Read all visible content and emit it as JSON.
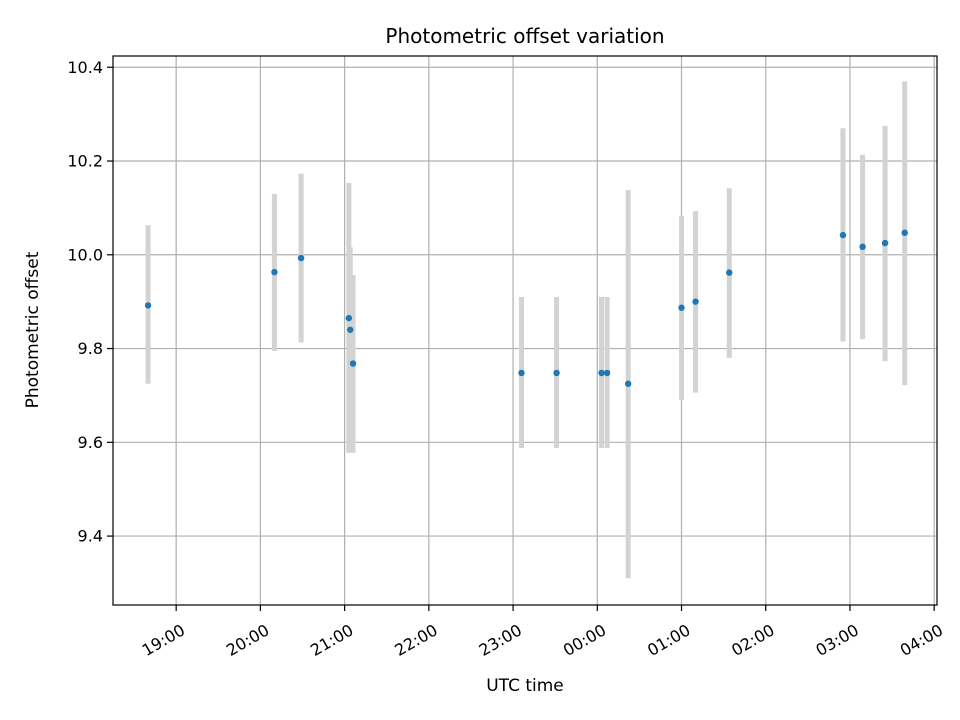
{
  "chart_data": {
    "type": "scatter",
    "title": "Photometric offset variation",
    "xlabel": "UTC time",
    "ylabel": "Photometric offset",
    "x_tick_labels": [
      "19:00",
      "20:00",
      "21:00",
      "22:00",
      "23:00",
      "00:00",
      "01:00",
      "02:00",
      "03:00",
      "04:00"
    ],
    "y_ticks": [
      9.4,
      9.6,
      9.8,
      10.0,
      10.2,
      10.4
    ],
    "y_tick_labels": [
      "9.4",
      "9.6",
      "9.8",
      "10.0",
      "10.2",
      "10.4"
    ],
    "xlim": [
      "18:15",
      "04:02"
    ],
    "ylim": [
      9.253,
      10.424
    ],
    "grid": true,
    "marker_color": "#1f77b4",
    "errorbar_color": "#d3d3d3",
    "points": [
      {
        "t": "18:40",
        "y": 9.892,
        "lo": 9.725,
        "hi": 10.063
      },
      {
        "t": "20:10",
        "y": 9.963,
        "lo": 9.795,
        "hi": 10.13
      },
      {
        "t": "20:29",
        "y": 9.993,
        "lo": 9.813,
        "hi": 10.173
      },
      {
        "t": "21:03",
        "y": 9.865,
        "lo": 9.578,
        "hi": 10.153
      },
      {
        "t": "21:04",
        "y": 9.84,
        "lo": 9.578,
        "hi": 10.016
      },
      {
        "t": "21:06",
        "y": 9.768,
        "lo": 9.578,
        "hi": 9.957
      },
      {
        "t": "23:06",
        "y": 9.748,
        "lo": 9.588,
        "hi": 9.91
      },
      {
        "t": "23:31",
        "y": 9.748,
        "lo": 9.588,
        "hi": 9.91
      },
      {
        "t": "00:03",
        "y": 9.748,
        "lo": 9.588,
        "hi": 9.91
      },
      {
        "t": "00:07",
        "y": 9.748,
        "lo": 9.588,
        "hi": 9.91
      },
      {
        "t": "00:22",
        "y": 9.725,
        "lo": 9.31,
        "hi": 10.138
      },
      {
        "t": "01:00",
        "y": 9.887,
        "lo": 9.69,
        "hi": 10.083
      },
      {
        "t": "01:10",
        "y": 9.9,
        "lo": 9.706,
        "hi": 10.093
      },
      {
        "t": "01:34",
        "y": 9.962,
        "lo": 9.78,
        "hi": 10.142
      },
      {
        "t": "02:55",
        "y": 10.042,
        "lo": 9.815,
        "hi": 10.27
      },
      {
        "t": "03:09",
        "y": 10.017,
        "lo": 9.82,
        "hi": 10.213
      },
      {
        "t": "03:25",
        "y": 10.025,
        "lo": 9.773,
        "hi": 10.275
      },
      {
        "t": "03:39",
        "y": 10.047,
        "lo": 9.722,
        "hi": 10.37
      }
    ]
  }
}
